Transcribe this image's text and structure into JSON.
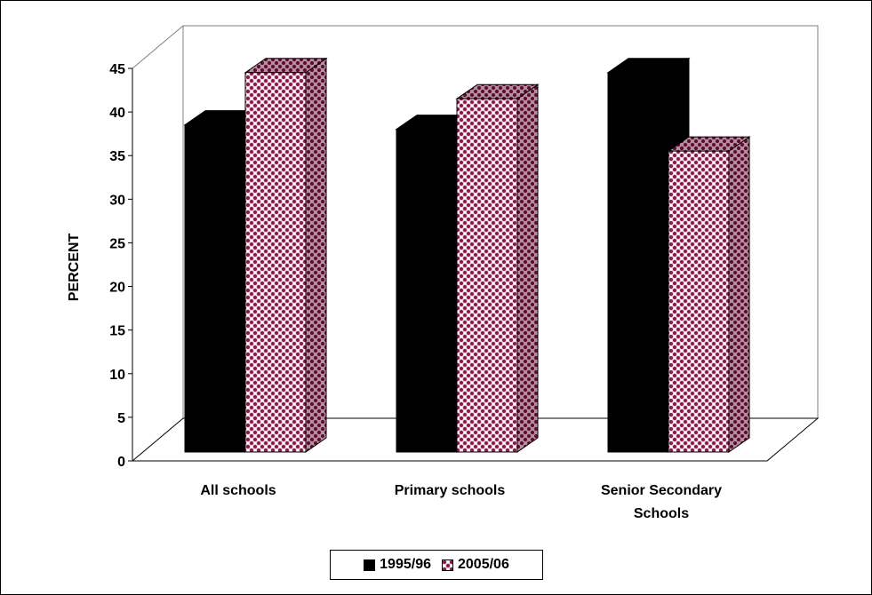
{
  "chart_data": {
    "type": "bar",
    "categories": [
      [
        "All schools"
      ],
      [
        "Primary schools"
      ],
      [
        "Senior Secondary",
        "Schools"
      ]
    ],
    "series": [
      {
        "name": "1995/96",
        "values": [
          37.5,
          37,
          43.5
        ],
        "color": "#000000",
        "pattern": "solid"
      },
      {
        "name": "2005/06",
        "values": [
          43.5,
          40.5,
          34.5
        ],
        "color": "#8B1A4A",
        "pattern": "checker"
      }
    ],
    "ylabel": "PERCENT",
    "ylim": [
      0,
      45
    ],
    "yticks": [
      0,
      5,
      10,
      15,
      20,
      25,
      30,
      35,
      40,
      45
    ],
    "style": "3d-clustered-column",
    "grid": false,
    "legend_position": "bottom"
  }
}
